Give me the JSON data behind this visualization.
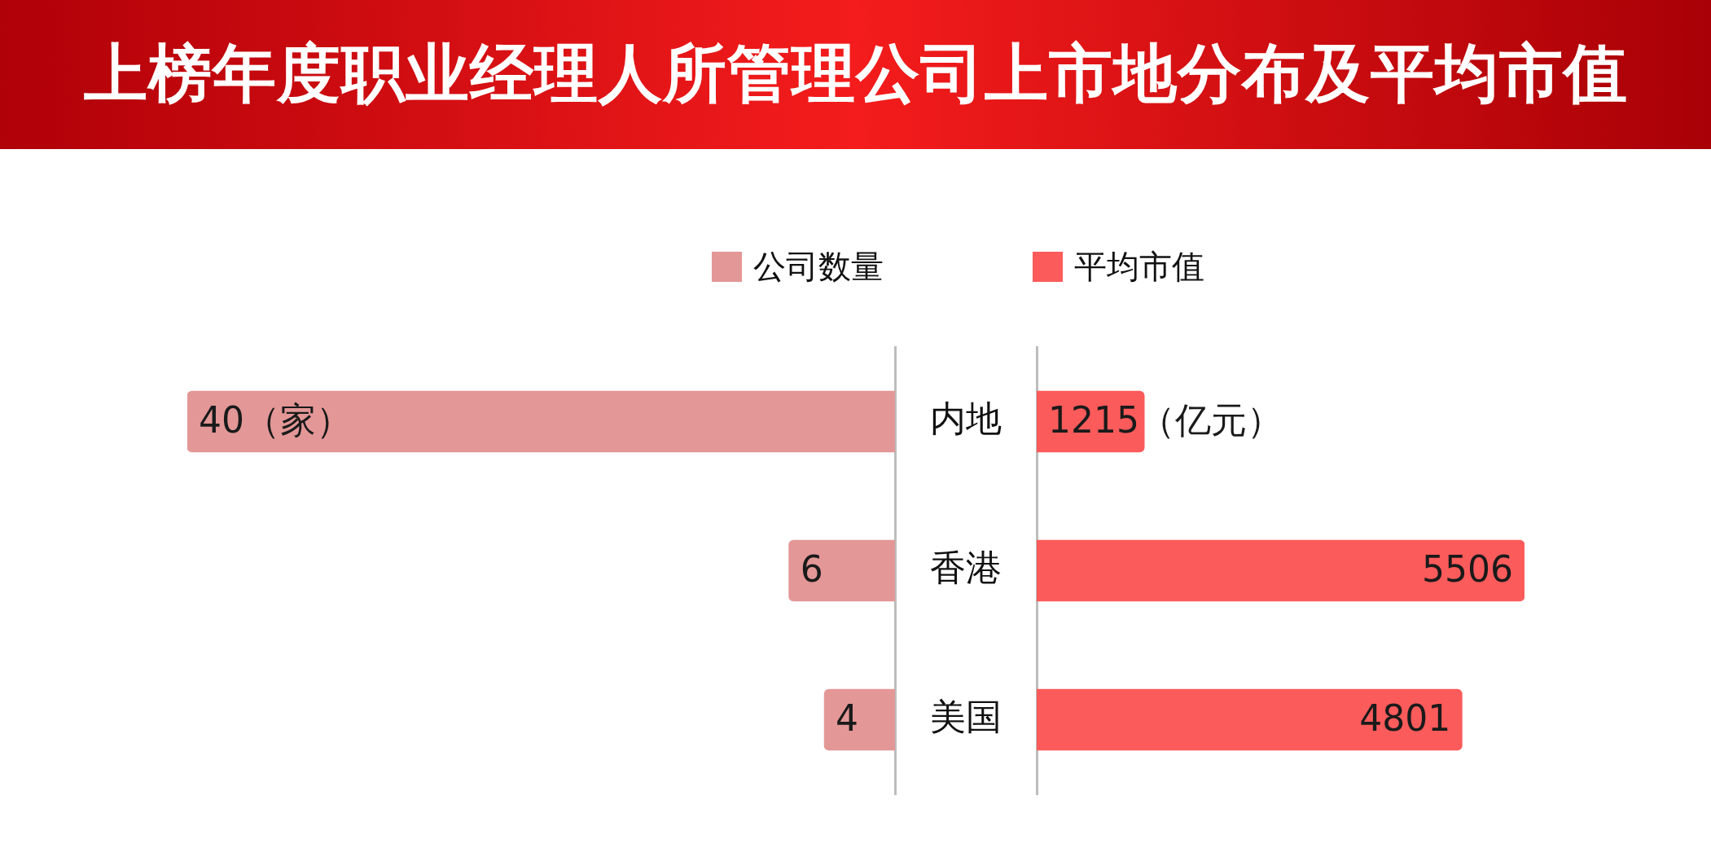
{
  "chart_data": [
    {
      "type": "bar",
      "orientation": "horizontal",
      "title": "上榜年度职业经理人所管理公司上市地分布及平均市值",
      "categories": [
        "内地",
        "香港",
        "美国"
      ],
      "tick_labels": "y",
      "legend": "top right",
      "series": [
        {
          "name": "公司数量",
          "color": "#e39797",
          "values": [
            40,
            6,
            4
          ],
          "value_labels": [
            "40（家）",
            "6",
            "4"
          ]
        }
      ]
    },
    {
      "type": "bar",
      "orientation": "horizontal",
      "categories": [
        null,
        null,
        null
      ],
      "tick_labels": false,
      "legend": "top left",
      "series": [
        {
          "name": "平均市值",
          "color": "#fc5b5b",
          "values": [
            1215,
            5506,
            4801
          ],
          "value_labels": [
            "1215（亿元）",
            "5506",
            "4801"
          ]
        }
      ]
    }
  ]
}
